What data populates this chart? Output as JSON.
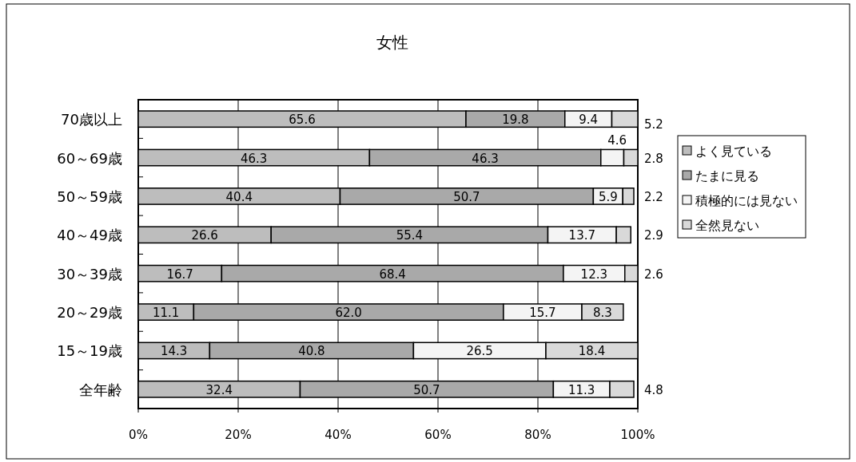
{
  "chart_data": {
    "type": "bar",
    "orientation": "horizontal",
    "stacked": true,
    "title": "女性",
    "categories": [
      "70歳以上",
      "60～69歳",
      "50～59歳",
      "40～49歳",
      "30～39歳",
      "20～29歳",
      "15～19歳",
      "全年齢"
    ],
    "series": [
      {
        "name": "よく見ている",
        "color": "#bdbdbd",
        "values": [
          65.6,
          46.3,
          40.4,
          26.6,
          16.7,
          11.1,
          14.3,
          32.4
        ],
        "value_labels": [
          "65.6",
          "46.3",
          "40.4",
          "26.6",
          "16.7",
          "11.1",
          "14.3",
          "32.4"
        ]
      },
      {
        "name": "たまに見る",
        "color": "#a9a9a9",
        "values": [
          19.8,
          46.3,
          50.7,
          55.4,
          68.4,
          62.0,
          40.8,
          50.7
        ],
        "value_labels": [
          "19.8",
          "46.3",
          "50.7",
          "55.4",
          "68.4",
          "62.0",
          "40.8",
          "50.7"
        ]
      },
      {
        "name": "積極的には見ない",
        "color": "#f4f4f4",
        "values": [
          9.4,
          4.6,
          5.9,
          13.7,
          12.3,
          15.7,
          26.5,
          11.3
        ],
        "value_labels": [
          "9.4",
          "4.6",
          "5.9",
          "13.7",
          "12.3",
          "15.7",
          "26.5",
          "11.3"
        ]
      },
      {
        "name": "全然見ない",
        "color": "#d9d9d9",
        "values": [
          5.2,
          2.8,
          2.2,
          2.9,
          2.6,
          8.3,
          18.4,
          4.8
        ],
        "value_labels": [
          "5.2",
          "2.8",
          "2.2",
          "2.9",
          "2.6",
          "8.3",
          "18.4",
          "4.8"
        ]
      }
    ],
    "xlim": [
      0,
      100
    ],
    "xticks": [
      {
        "value": 0,
        "label": "0%"
      },
      {
        "value": 20,
        "label": "20%"
      },
      {
        "value": 40,
        "label": "40%"
      },
      {
        "value": 60,
        "label": "60%"
      },
      {
        "value": 80,
        "label": "80%"
      },
      {
        "value": 100,
        "label": "100%"
      }
    ],
    "grid": "x",
    "legend": "right"
  }
}
